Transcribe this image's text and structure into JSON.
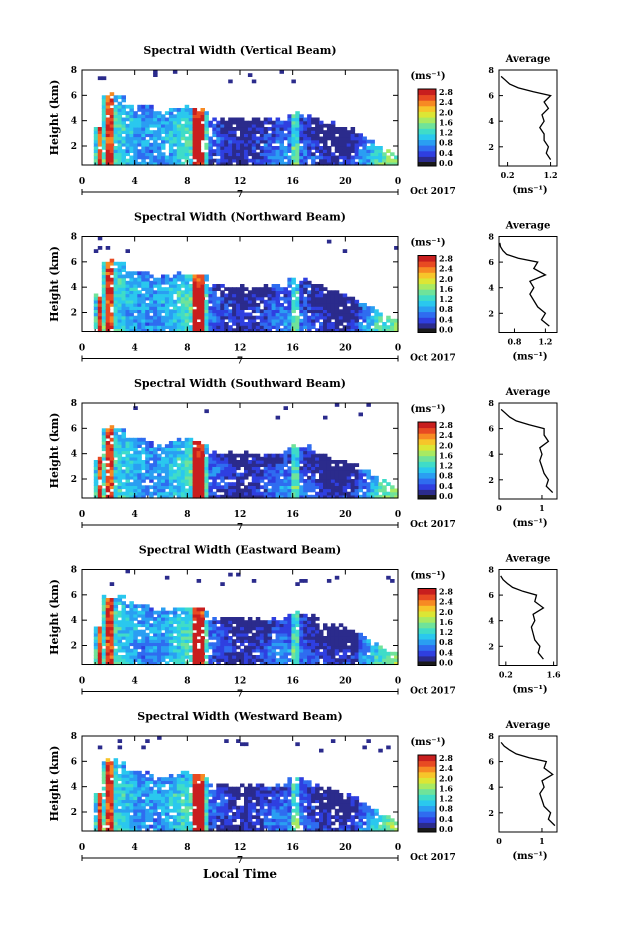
{
  "figure": {
    "xaxis_title": "Local Time",
    "date_label": "Oct 2017",
    "day_label": "7",
    "colorbar_unit": "(ms⁻¹)",
    "avg_xlabel": "(ms⁻¹)",
    "avg_title": "Average",
    "ylabel": "Height (km)"
  },
  "colors": {
    "colormap": [
      "#2b2b8c",
      "#2f3fe0",
      "#2f6cf0",
      "#2a9ef2",
      "#2ac8ee",
      "#3fdcc8",
      "#6fe39a",
      "#a8ea62",
      "#dce635",
      "#f7c52a",
      "#f78a23",
      "#e84a22",
      "#c81e1e"
    ],
    "colorbar_bottom": "#1a1a1a"
  },
  "chart_data": [
    {
      "type": "heatmap",
      "title": "Spectral Width (Vertical Beam)",
      "ylabel": "Height (km)",
      "xlabel": "Local Time",
      "x_ticks": [
        "0",
        "4",
        "8",
        "12",
        "16",
        "20",
        "0"
      ],
      "y_ticks": [
        "2",
        "4",
        "6",
        "8"
      ],
      "xlim": [
        0,
        24
      ],
      "ylim": [
        0.5,
        8
      ],
      "colorbar": {
        "unit": "(ms⁻¹)",
        "ticks": [
          "0.0",
          "0.4",
          "0.8",
          "1.2",
          "1.6",
          "2.0",
          "2.4",
          "2.8"
        ],
        "range": [
          0,
          2.8
        ]
      },
      "average_profile": {
        "title": "Average",
        "xlabel": "(ms⁻¹)",
        "x_ticks": [
          "0.2",
          "1.2"
        ],
        "y_ticks": [
          "2",
          "4",
          "6",
          "8"
        ],
        "xlim": [
          0,
          1.35
        ],
        "ylim": [
          0.5,
          8
        ],
        "height": [
          1.0,
          1.5,
          2.0,
          2.5,
          3.0,
          3.5,
          4.0,
          4.5,
          5.0,
          5.5,
          6.0,
          6.3,
          6.6,
          6.9,
          7.2,
          7.5
        ],
        "value": [
          1.2,
          1.1,
          1.15,
          1.05,
          1.05,
          0.95,
          1.05,
          1.0,
          1.15,
          1.05,
          1.2,
          0.8,
          0.45,
          0.25,
          0.15,
          0.05
        ]
      }
    },
    {
      "type": "heatmap",
      "title": "Spectral Width (Northward Beam)",
      "ylabel": "Height (km)",
      "xlabel": "Local Time",
      "x_ticks": [
        "0",
        "4",
        "8",
        "12",
        "16",
        "20",
        "0"
      ],
      "y_ticks": [
        "2",
        "4",
        "6",
        "8"
      ],
      "xlim": [
        0,
        24
      ],
      "ylim": [
        0.5,
        8
      ],
      "colorbar": {
        "unit": "(ms⁻¹)",
        "ticks": [
          "0.0",
          "0.4",
          "0.8",
          "1.2",
          "1.6",
          "2.0",
          "2.4",
          "2.8"
        ],
        "range": [
          0,
          2.8
        ]
      },
      "average_profile": {
        "title": "Average",
        "xlabel": "(ms⁻¹)",
        "x_ticks": [
          "0.8",
          "1.2"
        ],
        "y_ticks": [
          "2",
          "4",
          "6",
          "8"
        ],
        "xlim": [
          0.6,
          1.35
        ],
        "ylim": [
          0.5,
          8
        ],
        "height": [
          1.0,
          1.5,
          2.0,
          2.5,
          3.0,
          3.5,
          4.0,
          4.5,
          5.0,
          5.5,
          6.0,
          6.3,
          6.6,
          6.9,
          7.2,
          7.5
        ],
        "value": [
          1.25,
          1.15,
          1.2,
          1.1,
          1.05,
          1.0,
          1.05,
          1.0,
          1.2,
          1.05,
          1.1,
          0.85,
          0.7,
          0.65,
          0.62,
          0.61
        ]
      }
    },
    {
      "type": "heatmap",
      "title": "Spectral Width (Southward Beam)",
      "ylabel": "Height (km)",
      "xlabel": "Local Time",
      "x_ticks": [
        "0",
        "4",
        "8",
        "12",
        "16",
        "20",
        "0"
      ],
      "y_ticks": [
        "2",
        "4",
        "6",
        "8"
      ],
      "xlim": [
        0,
        24
      ],
      "ylim": [
        0.5,
        8
      ],
      "colorbar": {
        "unit": "(ms⁻¹)",
        "ticks": [
          "0.0",
          "0.4",
          "0.8",
          "1.2",
          "1.6",
          "2.0",
          "2.4",
          "2.8"
        ],
        "range": [
          0,
          2.8
        ]
      },
      "average_profile": {
        "title": "Average",
        "xlabel": "(ms⁻¹)",
        "x_ticks": [
          "0",
          "1"
        ],
        "y_ticks": [
          "2",
          "4",
          "6",
          "8"
        ],
        "xlim": [
          0,
          1.35
        ],
        "ylim": [
          0.5,
          8
        ],
        "height": [
          1.0,
          1.5,
          2.0,
          2.5,
          3.0,
          3.5,
          4.0,
          4.5,
          5.0,
          5.5,
          6.0,
          6.3,
          6.6,
          6.9,
          7.2,
          7.5
        ],
        "value": [
          1.25,
          1.1,
          1.15,
          1.05,
          1.0,
          0.95,
          1.0,
          0.95,
          1.15,
          1.05,
          1.05,
          0.7,
          0.4,
          0.25,
          0.15,
          0.05
        ]
      }
    },
    {
      "type": "heatmap",
      "title": "Spectral Width (Eastward Beam)",
      "ylabel": "Height (km)",
      "xlabel": "Local Time",
      "x_ticks": [
        "0",
        "4",
        "8",
        "12",
        "16",
        "20",
        "0"
      ],
      "y_ticks": [
        "2",
        "4",
        "6",
        "8"
      ],
      "xlim": [
        0,
        24
      ],
      "ylim": [
        0.5,
        8
      ],
      "colorbar": {
        "unit": "(ms⁻¹)",
        "ticks": [
          "0.0",
          "0.4",
          "0.8",
          "1.2",
          "1.6",
          "2.0",
          "2.4",
          "2.8"
        ],
        "range": [
          0,
          2.8
        ]
      },
      "average_profile": {
        "title": "Average",
        "xlabel": "(ms⁻¹)",
        "x_ticks": [
          "0.2",
          "1.6"
        ],
        "y_ticks": [
          "2",
          "4",
          "6",
          "8"
        ],
        "xlim": [
          0,
          1.7
        ],
        "ylim": [
          0.5,
          8
        ],
        "height": [
          1.0,
          1.5,
          2.0,
          2.5,
          3.0,
          3.5,
          4.0,
          4.5,
          5.0,
          5.5,
          6.0,
          6.3,
          6.6,
          6.9,
          7.2,
          7.5
        ],
        "value": [
          1.3,
          1.15,
          1.2,
          1.05,
          1.0,
          0.95,
          1.05,
          1.0,
          1.3,
          1.05,
          1.1,
          0.7,
          0.4,
          0.25,
          0.12,
          0.05
        ]
      }
    },
    {
      "type": "heatmap",
      "title": "Spectral Width (Westward Beam)",
      "ylabel": "Height (km)",
      "xlabel": "Local Time",
      "x_ticks": [
        "0",
        "4",
        "8",
        "12",
        "16",
        "20",
        "0"
      ],
      "y_ticks": [
        "2",
        "4",
        "6",
        "8"
      ],
      "xlim": [
        0,
        24
      ],
      "ylim": [
        0.5,
        8
      ],
      "colorbar": {
        "unit": "(ms⁻¹)",
        "ticks": [
          "0.0",
          "0.4",
          "0.8",
          "1.2",
          "1.6",
          "2.0",
          "2.4",
          "2.8"
        ],
        "range": [
          0,
          2.8
        ]
      },
      "average_profile": {
        "title": "Average",
        "xlabel": "(ms⁻¹)",
        "x_ticks": [
          "0",
          "1"
        ],
        "y_ticks": [
          "2",
          "4",
          "6",
          "8"
        ],
        "xlim": [
          0,
          1.35
        ],
        "ylim": [
          0.5,
          8
        ],
        "height": [
          1.0,
          1.5,
          2.0,
          2.5,
          3.0,
          3.5,
          4.0,
          4.5,
          5.0,
          5.5,
          6.0,
          6.3,
          6.6,
          6.9,
          7.2,
          7.5
        ],
        "value": [
          1.3,
          1.15,
          1.2,
          1.05,
          1.0,
          0.95,
          1.05,
          1.0,
          1.25,
          1.05,
          1.1,
          0.7,
          0.4,
          0.25,
          0.12,
          0.05
        ]
      }
    }
  ]
}
